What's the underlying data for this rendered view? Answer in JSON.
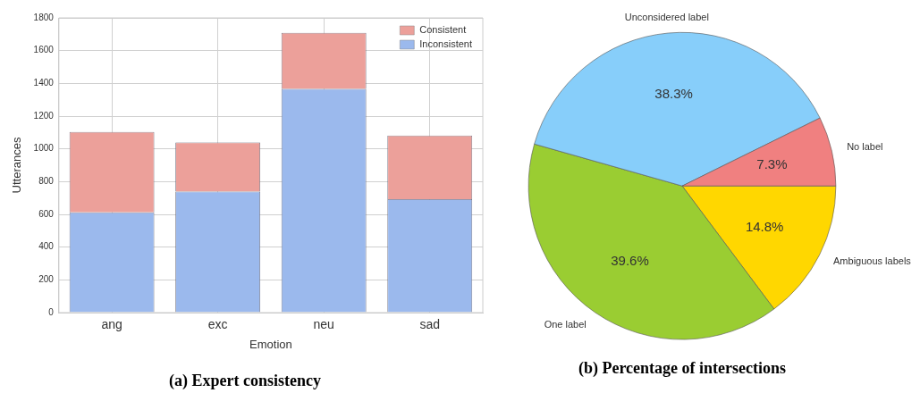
{
  "chart_data": [
    {
      "type": "bar",
      "title": "(a) Expert consistency",
      "xlabel": "Emotion",
      "ylabel": "Utterances",
      "categories": [
        "ang",
        "exc",
        "neu",
        "sad"
      ],
      "stacked": true,
      "series": [
        {
          "name": "Inconsistent",
          "color": "#9bb9ed",
          "values": [
            612,
            739,
            1366,
            693
          ]
        },
        {
          "name": "Consistent",
          "color": "#eca09a",
          "values": [
            491,
            300,
            343,
            389
          ]
        }
      ],
      "ylim": [
        0,
        1800
      ],
      "yticks": [
        0,
        200,
        400,
        600,
        800,
        1000,
        1200,
        1400,
        1600,
        1800
      ],
      "grid": true,
      "legend": "top right"
    },
    {
      "type": "pie",
      "title": "(b) Percentage of intersections",
      "categories": [
        "Ambiguous labels",
        "One label",
        "Unconsidered label",
        "No label"
      ],
      "values": [
        14.8,
        39.6,
        38.3,
        7.3
      ],
      "colors": [
        "#ffd700",
        "#9acd32",
        "#87cefa",
        "#f08080"
      ],
      "value_labels": [
        "14.8%",
        "39.6%",
        "38.3%",
        "7.3%"
      ]
    }
  ]
}
